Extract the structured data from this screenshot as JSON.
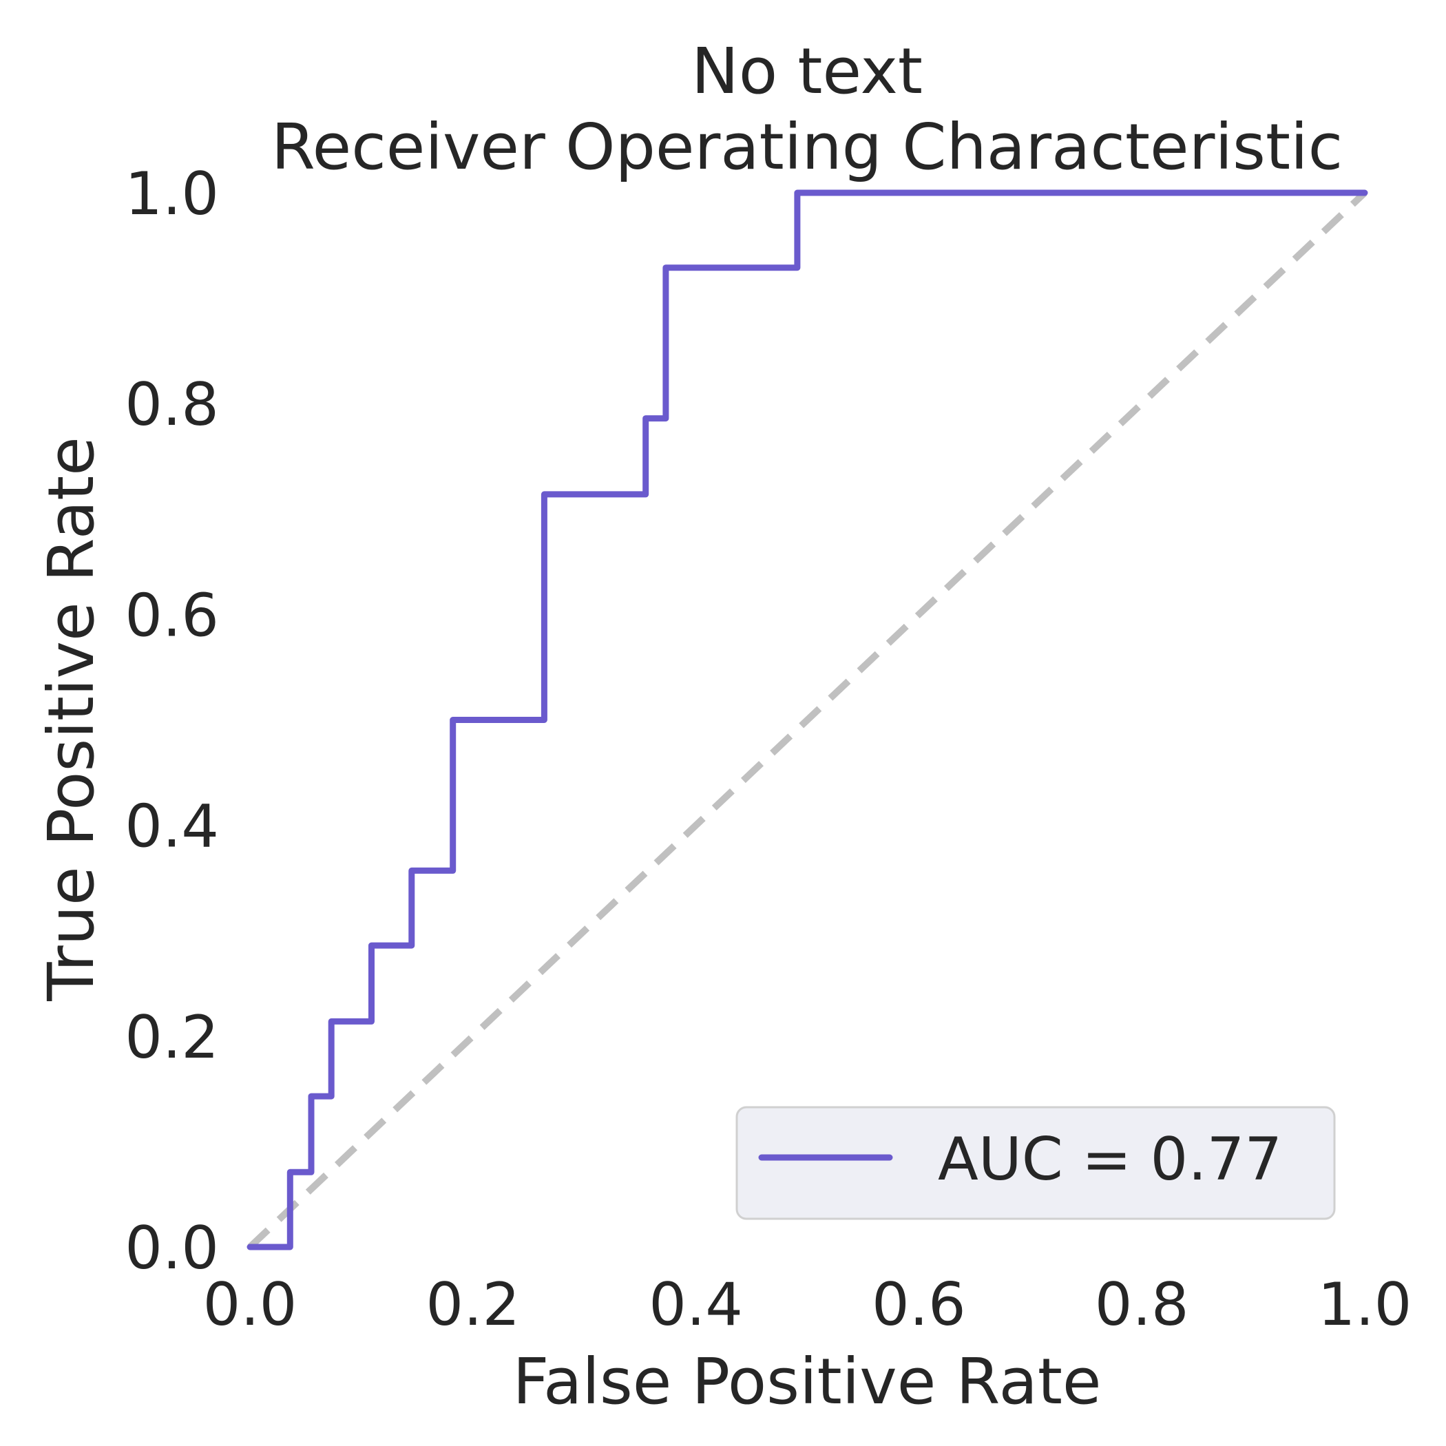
{
  "chart_data": {
    "type": "line",
    "title": "No text",
    "subtitle": "Receiver Operating Characteristic",
    "xlabel": "False Positive Rate",
    "ylabel": "True Positive Rate",
    "xlim": [
      0,
      1
    ],
    "ylim": [
      0,
      1
    ],
    "x_ticks": [
      "0.0",
      "0.2",
      "0.4",
      "0.6",
      "0.8",
      "1.0"
    ],
    "y_ticks": [
      "0.0",
      "0.2",
      "0.4",
      "0.6",
      "0.8",
      "1.0"
    ],
    "grid": false,
    "legend_position": "lower-right",
    "series": [
      {
        "name": "AUC = 0.77",
        "color": "#6a5acd",
        "style": "solid-step",
        "x": [
          0.0,
          0.036,
          0.036,
          0.055,
          0.055,
          0.073,
          0.073,
          0.109,
          0.109,
          0.145,
          0.145,
          0.182,
          0.182,
          0.264,
          0.264,
          0.355,
          0.355,
          0.373,
          0.373,
          0.491,
          0.491,
          1.0
        ],
        "y": [
          0.0,
          0.0,
          0.071,
          0.071,
          0.143,
          0.143,
          0.214,
          0.214,
          0.286,
          0.286,
          0.357,
          0.357,
          0.5,
          0.5,
          0.714,
          0.714,
          0.786,
          0.786,
          0.929,
          0.929,
          1.0,
          1.0
        ]
      },
      {
        "name": "",
        "color": "#c0c0c0",
        "style": "dashed",
        "x": [
          0,
          1
        ],
        "y": [
          0,
          1
        ]
      }
    ]
  }
}
